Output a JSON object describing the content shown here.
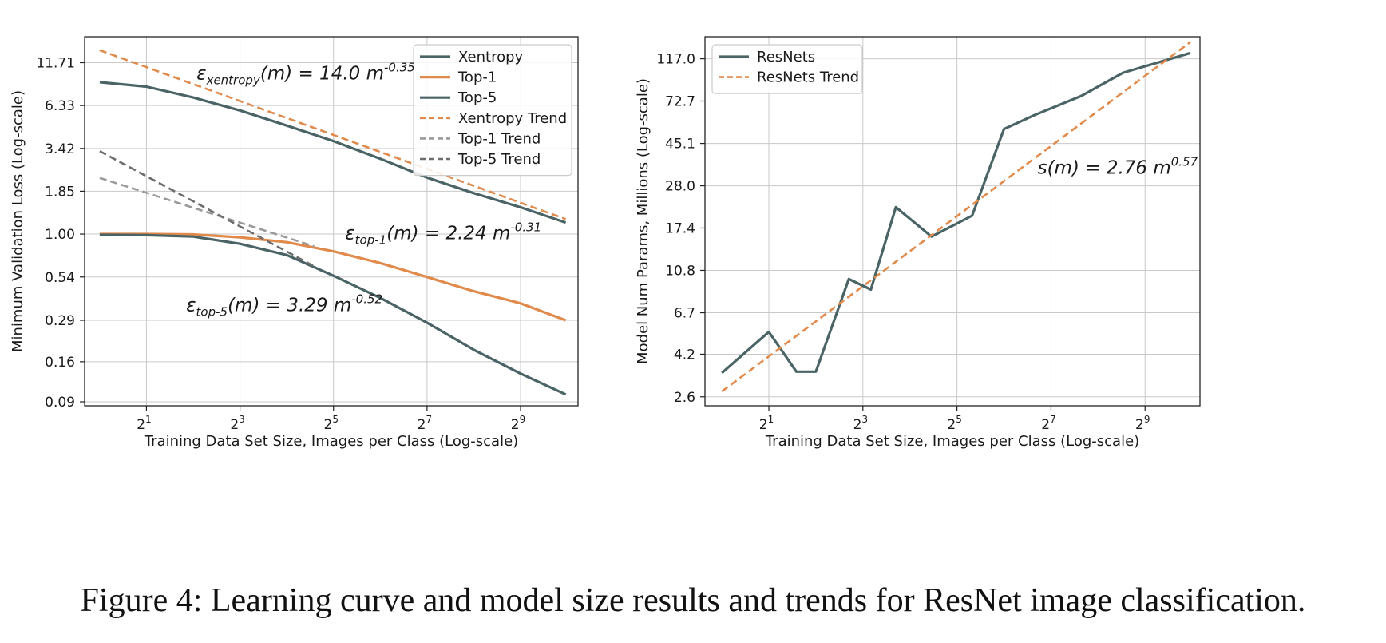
{
  "caption": "Figure 4: Learning curve and model size results and trends for ResNet image classification.",
  "colors": {
    "gray_line": "#4a6466",
    "orange": "#e08a4c",
    "trend_gray": "#9a9a9a",
    "trend_dark": "#6e6e6e",
    "grid": "#c9c9c9",
    "axis": "#222222"
  },
  "chart_data": [
    {
      "type": "line",
      "xscale": "log2",
      "yscale": "log",
      "xlabel": "Training Data Set Size, Images per Class (Log-scale)",
      "ylabel": "Minimum Validation Loss (Log-scale)",
      "xlim": [
        0.8,
        1200
      ],
      "ylim": [
        0.085,
        17.0
      ],
      "xticks": [
        2,
        8,
        32,
        128,
        512
      ],
      "xtick_base": "2",
      "xtick_exps": [
        "1",
        "3",
        "5",
        "7",
        "9"
      ],
      "yticks": [
        0.09,
        0.16,
        0.29,
        0.54,
        1.0,
        1.85,
        3.42,
        6.33,
        11.71
      ],
      "ytick_labels": [
        "0.09",
        "0.16",
        "0.29",
        "0.54",
        "1.00",
        "1.85",
        "3.42",
        "6.33",
        "11.71"
      ],
      "grid": true,
      "legend_position": "top-right",
      "series": [
        {
          "name": "Xentropy",
          "style": "solid",
          "color": "#4a6466",
          "x": [
            1,
            2,
            4,
            8,
            16,
            32,
            64,
            128,
            256,
            512,
            1000
          ],
          "y": [
            8.85,
            8.3,
            7.1,
            5.9,
            4.75,
            3.8,
            2.95,
            2.25,
            1.8,
            1.47,
            1.18
          ]
        },
        {
          "name": "Top-1",
          "style": "solid",
          "color": "#e08a4c",
          "x": [
            1,
            2,
            4,
            8,
            16,
            32,
            64,
            128,
            256,
            512,
            1000
          ],
          "y": [
            1.0,
            1.0,
            0.995,
            0.955,
            0.89,
            0.78,
            0.66,
            0.54,
            0.44,
            0.37,
            0.29
          ]
        },
        {
          "name": "Top-5",
          "style": "solid",
          "color": "#4a6466",
          "x": [
            1,
            2,
            4,
            8,
            16,
            32,
            64,
            128,
            256,
            512,
            1000
          ],
          "y": [
            0.99,
            0.985,
            0.965,
            0.87,
            0.74,
            0.55,
            0.4,
            0.28,
            0.19,
            0.135,
            0.1
          ]
        },
        {
          "name": "Xentropy Trend",
          "style": "dashed",
          "color": "#e08a4c",
          "x": [
            1,
            1000
          ],
          "y": [
            14.0,
            1.24
          ]
        },
        {
          "name": "Top-1 Trend",
          "style": "dashed",
          "color": "#9a9a9a",
          "x": [
            1,
            24
          ],
          "y": [
            2.24,
            0.84
          ]
        },
        {
          "name": "Top-5 Trend",
          "style": "dashed",
          "color": "#6e6e6e",
          "x": [
            1,
            24
          ],
          "y": [
            3.29,
            0.63
          ]
        }
      ],
      "annotations": [
        {
          "base": "ε",
          "sub": "xentropy",
          "mid": "(m) = 14.0 m",
          "sup": "-0.35",
          "at": [
            4.2,
            9.2
          ]
        },
        {
          "base": "ε",
          "sub": "top-1",
          "mid": "(m) = 2.24 m",
          "sup": "-0.31",
          "at": [
            38,
            0.93
          ]
        },
        {
          "base": "ε",
          "sub": "top-5",
          "mid": "(m) = 3.29 m",
          "sup": "-0.52",
          "at": [
            3.6,
            0.33
          ]
        }
      ]
    },
    {
      "type": "line",
      "xscale": "log2",
      "yscale": "log",
      "xlabel": "Training Data Set Size, Images per Class (Log-scale)",
      "ylabel": "Model Num Params, Millions (Log-scale)",
      "xlim": [
        0.78,
        1150
      ],
      "ylim": [
        2.35,
        150
      ],
      "xticks": [
        2,
        8,
        32,
        128,
        512
      ],
      "xtick_base": "2",
      "xtick_exps": [
        "1",
        "3",
        "5",
        "7",
        "9"
      ],
      "yticks": [
        2.6,
        4.2,
        6.7,
        10.8,
        17.4,
        28.0,
        45.1,
        72.7,
        117.0
      ],
      "ytick_labels": [
        "2.6",
        "4.2",
        "6.7",
        "10.8",
        "17.4",
        "28.0",
        "45.1",
        "72.7",
        "117.0"
      ],
      "grid": true,
      "legend_position": "top-left",
      "series": [
        {
          "name": "ResNets",
          "style": "solid",
          "color": "#4a6466",
          "x": [
            1,
            2,
            3,
            4,
            6.5,
            9,
            13,
            22,
            40,
            64,
            100,
            200,
            370,
            1000
          ],
          "y": [
            3.4,
            5.4,
            3.45,
            3.45,
            9.8,
            8.7,
            22.0,
            15.8,
            20.0,
            53.0,
            62.0,
            77.0,
            100.0,
            125.0
          ]
        },
        {
          "name": "ResNets Trend",
          "style": "dashed",
          "color": "#e08a4c",
          "x": [
            1,
            1000
          ],
          "y": [
            2.76,
            141.4
          ]
        }
      ],
      "annotations": [
        {
          "base": "s",
          "sub": "",
          "mid": "(m) = 2.76 m",
          "sup": "0.57",
          "at": [
            105,
            32
          ]
        }
      ]
    }
  ]
}
